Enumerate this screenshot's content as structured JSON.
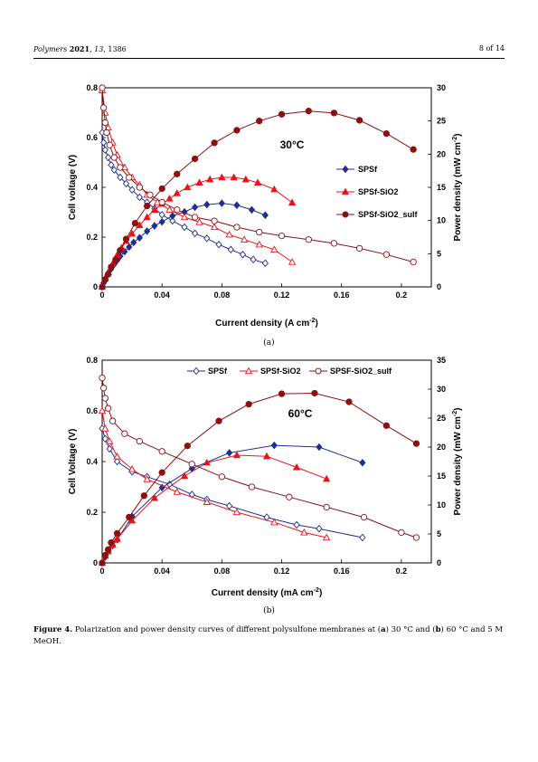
{
  "header": {
    "journal": "Polymers",
    "year": "2021",
    "volume": "13",
    "article": "1386",
    "page": "8 of 14"
  },
  "figure": {
    "caption_label": "Figure 4.",
    "caption_text_1": "Polarization and power density curves of different polysulfone membranes at (",
    "caption_a": "a",
    "caption_text_2": ") 30 °C and (",
    "caption_b": "b",
    "caption_text_3": ") 60 °C and 5 M MeOH.",
    "sublabel_a": "(a)",
    "sublabel_b": "(b)"
  },
  "colors": {
    "SPSf": "#1f2f8f",
    "SPSf-SiO2": "#e8141b",
    "SPSf-SiO2_sulf": "#8b1010"
  },
  "chart_data": [
    {
      "type": "scatter",
      "annotation": "30°C",
      "xlabel": "Current density (A cm-2)",
      "ylabel_left": "Cell voltage (V)",
      "ylabel_right": "Power density (mW cm-2)",
      "xlim": [
        0,
        0.22
      ],
      "ylim_left": [
        0,
        0.8
      ],
      "ylim_right": [
        0,
        30
      ],
      "xticks": [
        "0",
        "0.04",
        "0.08",
        "0.12",
        "0.16",
        "0.2"
      ],
      "yticks_left": [
        "0",
        "0.2",
        "0.4",
        "0.6",
        "0.8"
      ],
      "yticks_right": [
        "0",
        "5",
        "10",
        "15",
        "20",
        "25",
        "30"
      ],
      "legend_position": "right",
      "series": [
        {
          "name": "SPSf",
          "marker": "diamond",
          "axis": "left",
          "fill": "none",
          "x": [
            0,
            0.001,
            0.002,
            0.004,
            0.006,
            0.008,
            0.012,
            0.016,
            0.02,
            0.025,
            0.03,
            0.035,
            0.04,
            0.047,
            0.055,
            0.062,
            0.07,
            0.078,
            0.086,
            0.094,
            0.101,
            0.109
          ],
          "y": [
            0.62,
            0.58,
            0.55,
            0.52,
            0.49,
            0.47,
            0.44,
            0.415,
            0.39,
            0.36,
            0.34,
            0.315,
            0.29,
            0.265,
            0.24,
            0.215,
            0.195,
            0.17,
            0.15,
            0.13,
            0.11,
            0.095
          ]
        },
        {
          "name": "SPSf",
          "marker": "diamond",
          "axis": "right",
          "fill": "solid",
          "x": [
            0,
            0.001,
            0.002,
            0.004,
            0.006,
            0.008,
            0.01,
            0.012,
            0.015,
            0.018,
            0.021,
            0.025,
            0.03,
            0.035,
            0.04,
            0.047,
            0.055,
            0.062,
            0.07,
            0.08,
            0.09,
            0.1,
            0.109
          ],
          "y": [
            0,
            0.6,
            1.1,
            1.9,
            2.7,
            3.4,
            4.0,
            4.6,
            5.3,
            6.0,
            6.7,
            7.4,
            8.4,
            9.2,
            9.8,
            10.7,
            11.3,
            12.0,
            12.4,
            12.6,
            12.3,
            11.6,
            10.8
          ]
        },
        {
          "name": "SPSf-SiO2",
          "marker": "triangle",
          "axis": "left",
          "fill": "none",
          "x": [
            0,
            0.002,
            0.004,
            0.007,
            0.01,
            0.015,
            0.02,
            0.025,
            0.03,
            0.037,
            0.045,
            0.055,
            0.065,
            0.075,
            0.085,
            0.095,
            0.105,
            0.115,
            0.127
          ],
          "y": [
            0.79,
            0.7,
            0.64,
            0.58,
            0.53,
            0.48,
            0.44,
            0.41,
            0.37,
            0.34,
            0.31,
            0.28,
            0.26,
            0.24,
            0.21,
            0.19,
            0.17,
            0.15,
            0.1
          ]
        },
        {
          "name": "SPSf-SiO2",
          "marker": "triangle",
          "axis": "right",
          "fill": "solid",
          "x": [
            0,
            0.002,
            0.004,
            0.007,
            0.01,
            0.013,
            0.016,
            0.02,
            0.025,
            0.03,
            0.035,
            0.04,
            0.045,
            0.05,
            0.057,
            0.065,
            0.072,
            0.08,
            0.088,
            0.096,
            0.104,
            0.115,
            0.127
          ],
          "y": [
            0,
            1.3,
            2.2,
            3.5,
            4.8,
            5.9,
            6.9,
            8.0,
            9.3,
            10.5,
            11.6,
            12.5,
            13.3,
            14.1,
            15.0,
            15.7,
            16.2,
            16.5,
            16.5,
            16.2,
            15.7,
            14.7,
            12.7
          ]
        },
        {
          "name": "SPSf-SiO2_sulf",
          "marker": "circle",
          "axis": "left",
          "fill": "none",
          "x": [
            0,
            0.001,
            0.002,
            0.003,
            0.005,
            0.008,
            0.012,
            0.018,
            0.025,
            0.032,
            0.04,
            0.05,
            0.062,
            0.075,
            0.09,
            0.105,
            0.12,
            0.138,
            0.155,
            0.172,
            0.19,
            0.208
          ],
          "y": [
            0.8,
            0.72,
            0.66,
            0.62,
            0.57,
            0.52,
            0.48,
            0.44,
            0.4,
            0.37,
            0.34,
            0.31,
            0.28,
            0.265,
            0.24,
            0.22,
            0.205,
            0.19,
            0.175,
            0.155,
            0.13,
            0.1
          ]
        },
        {
          "name": "SPSf-SiO2_sulf",
          "marker": "circle",
          "axis": "right",
          "fill": "solid",
          "x": [
            0,
            0.002,
            0.004,
            0.006,
            0.009,
            0.012,
            0.016,
            0.022,
            0.03,
            0.04,
            0.05,
            0.062,
            0.075,
            0.09,
            0.105,
            0.12,
            0.138,
            0.155,
            0.172,
            0.19,
            0.208
          ],
          "y": [
            0,
            1.1,
            1.9,
            3.0,
            4.1,
            5.5,
            7.2,
            9.6,
            12.2,
            14.8,
            17.0,
            19.3,
            21.7,
            23.6,
            25.0,
            26.0,
            26.5,
            26.2,
            25.1,
            23.1,
            20.7
          ]
        }
      ]
    },
    {
      "type": "scatter",
      "annotation": "60°C",
      "xlabel": "Current density (mA cm-2)",
      "ylabel_left": "Cell Voltage (V)",
      "ylabel_right": "Power density (mW cm-2)",
      "xlim": [
        0,
        0.22
      ],
      "ylim_left": [
        0,
        0.8
      ],
      "ylim_right": [
        0,
        35
      ],
      "xticks": [
        "0",
        "0.04",
        "0.08",
        "0.12",
        "0.16",
        "0.2"
      ],
      "yticks_left": [
        "0",
        "0.2",
        "0.4",
        "0.6",
        "0.8"
      ],
      "yticks_right": [
        "0",
        "5",
        "10",
        "15",
        "20",
        "25",
        "30",
        "35"
      ],
      "legend_position": "top",
      "legend_labels": [
        "SPSf",
        "SPSf-SiO2",
        "SPSF-SiO2_sulf"
      ],
      "series": [
        {
          "name": "SPSf",
          "marker": "diamond",
          "axis": "left",
          "fill": "none",
          "x": [
            0,
            0.002,
            0.005,
            0.01,
            0.02,
            0.03,
            0.045,
            0.06,
            0.07,
            0.085,
            0.11,
            0.13,
            0.145,
            0.174
          ],
          "y": [
            0.53,
            0.49,
            0.45,
            0.4,
            0.36,
            0.34,
            0.31,
            0.27,
            0.25,
            0.225,
            0.18,
            0.15,
            0.135,
            0.1
          ]
        },
        {
          "name": "SPSf",
          "marker": "diamond",
          "axis": "right",
          "fill": "solid",
          "x": [
            0,
            0.002,
            0.004,
            0.007,
            0.01,
            0.02,
            0.04,
            0.06,
            0.085,
            0.115,
            0.145,
            0.174
          ],
          "y": [
            0,
            1,
            2,
            3,
            4,
            8,
            13,
            16.3,
            19,
            20.3,
            20,
            17.3
          ]
        },
        {
          "name": "SPSf-SiO2",
          "marker": "triangle",
          "axis": "left",
          "fill": "none",
          "x": [
            0,
            0.002,
            0.005,
            0.01,
            0.02,
            0.03,
            0.05,
            0.07,
            0.09,
            0.115,
            0.135,
            0.15
          ],
          "y": [
            0.6,
            0.53,
            0.48,
            0.42,
            0.37,
            0.33,
            0.28,
            0.24,
            0.2,
            0.16,
            0.12,
            0.1
          ]
        },
        {
          "name": "SPSf-SiO2",
          "marker": "triangle",
          "axis": "right",
          "fill": "solid",
          "x": [
            0,
            0.002,
            0.004,
            0.007,
            0.01,
            0.02,
            0.035,
            0.055,
            0.07,
            0.09,
            0.11,
            0.13,
            0.15
          ],
          "y": [
            0,
            1.2,
            2.0,
            3.1,
            4.1,
            7.3,
            11.2,
            15,
            17.3,
            18.6,
            18.4,
            16.5,
            14.5
          ]
        },
        {
          "name": "SPSF-SiO2_sulf",
          "marker": "circle",
          "axis": "left",
          "fill": "none",
          "x": [
            0,
            0.001,
            0.002,
            0.004,
            0.007,
            0.015,
            0.025,
            0.04,
            0.06,
            0.08,
            0.1,
            0.125,
            0.15,
            0.175,
            0.2,
            0.21
          ],
          "y": [
            0.73,
            0.69,
            0.65,
            0.61,
            0.56,
            0.51,
            0.48,
            0.44,
            0.39,
            0.34,
            0.3,
            0.26,
            0.22,
            0.18,
            0.12,
            0.1
          ]
        },
        {
          "name": "SPSF-SiO2_sulf",
          "marker": "circle",
          "axis": "right",
          "fill": "solid",
          "x": [
            0,
            0.002,
            0.004,
            0.006,
            0.01,
            0.018,
            0.028,
            0.04,
            0.057,
            0.078,
            0.098,
            0.12,
            0.142,
            0.165,
            0.19,
            0.21
          ],
          "y": [
            0,
            1.3,
            2.3,
            3.5,
            5.1,
            7.9,
            11.6,
            15.6,
            20.2,
            24.5,
            27.4,
            29.2,
            29.3,
            27.8,
            23.7,
            20.6
          ]
        }
      ]
    }
  ]
}
